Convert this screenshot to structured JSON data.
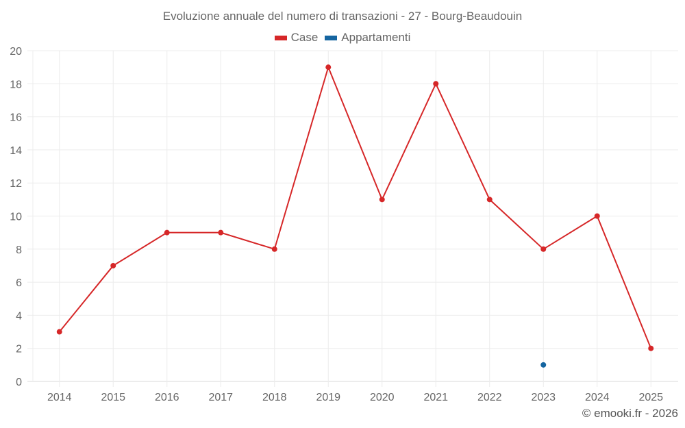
{
  "chart": {
    "title": "Evoluzione annuale del numero di transazioni - 27 - Bourg-Beaudouin",
    "legend": [
      {
        "label": "Case",
        "color": "#d62728"
      },
      {
        "label": "Appartamenti",
        "color": "#1565a0"
      }
    ],
    "footer": "© emooki.fr - 2026"
  },
  "chart_data": {
    "type": "line",
    "title": "Evoluzione annuale del numero di transazioni - 27 - Bourg-Beaudouin",
    "xlabel": "",
    "ylabel": "",
    "categories": [
      "2014",
      "2015",
      "2016",
      "2017",
      "2018",
      "2019",
      "2020",
      "2021",
      "2022",
      "2023",
      "2024",
      "2025"
    ],
    "series": [
      {
        "name": "Case",
        "color": "#d62728",
        "values": [
          3,
          7,
          9,
          9,
          8,
          19,
          11,
          18,
          11,
          8,
          10,
          2
        ]
      },
      {
        "name": "Appartamenti",
        "color": "#1565a0",
        "values": [
          null,
          null,
          null,
          null,
          null,
          null,
          null,
          null,
          null,
          1,
          null,
          null
        ]
      }
    ],
    "ylim": [
      0,
      20
    ],
    "yticks": [
      0,
      2,
      4,
      6,
      8,
      10,
      12,
      14,
      16,
      18,
      20
    ],
    "grid": true,
    "legend_position": "top"
  }
}
